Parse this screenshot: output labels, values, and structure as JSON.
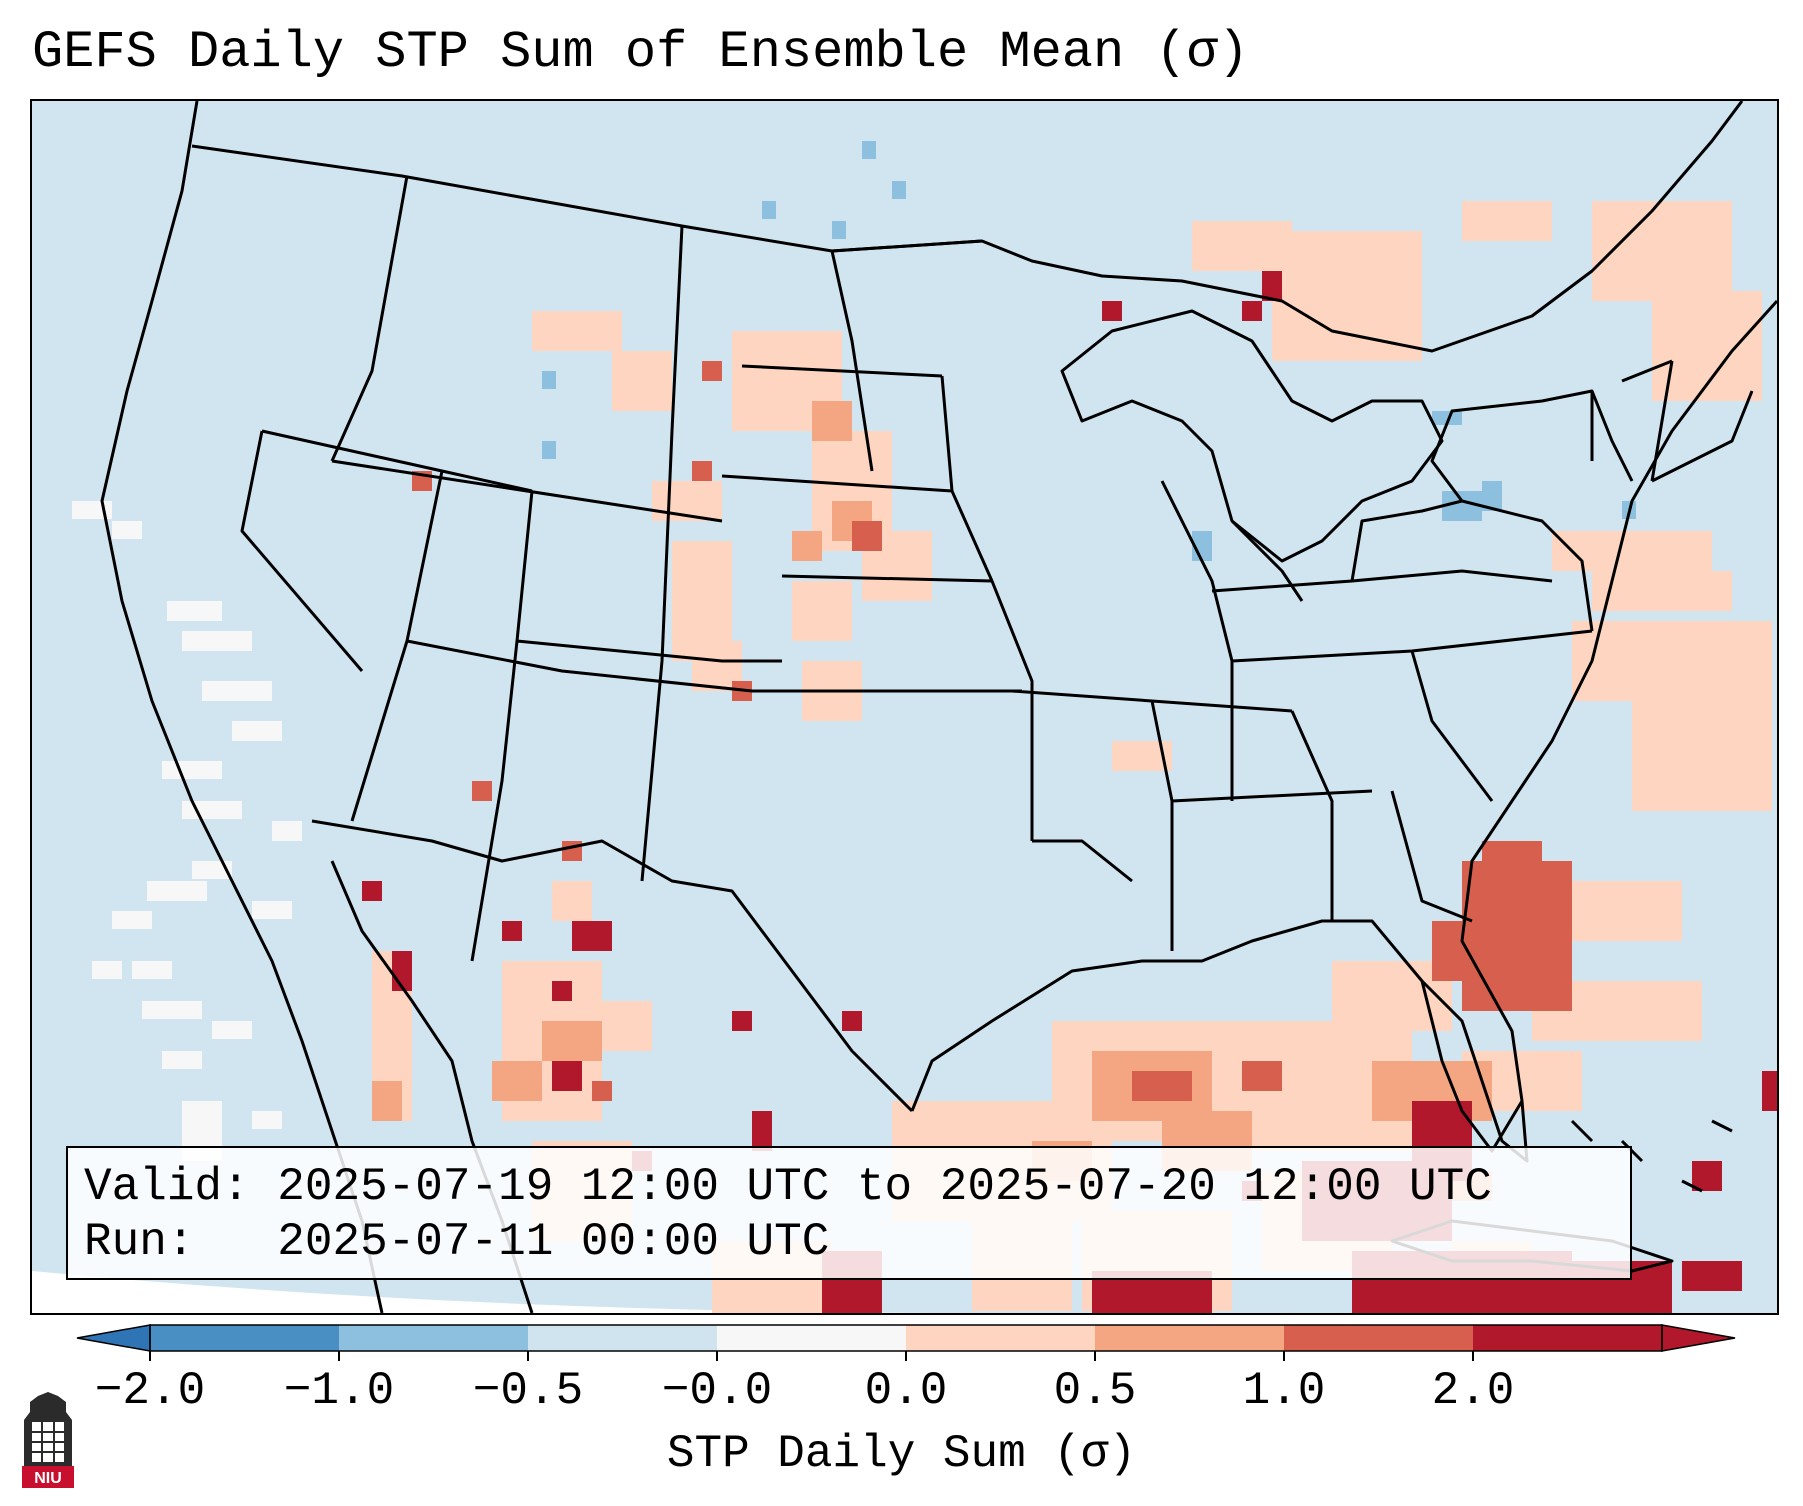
{
  "title": "GEFS Daily STP Sum of Ensemble Mean (σ)",
  "info": {
    "valid_label": "Valid:",
    "valid_value": "2025-07-19 12:00 UTC to 2025-07-20 12:00 UTC",
    "run_label": "Run:",
    "run_value": "2025-07-11 00:00 UTC"
  },
  "colorbar": {
    "title": "STP Daily Sum (σ)",
    "ticks": [
      "−2.0",
      "−1.0",
      "−0.5",
      "−0.0",
      "0.0",
      "0.5",
      "1.0",
      "2.0"
    ],
    "segment_colors": [
      "#4a8fc4",
      "#8cc0de",
      "#cfe4ef",
      "#f7f7f7",
      "#fdd5c0",
      "#f4a582",
      "#d6604d",
      "#b2182b"
    ],
    "extend_low_color": "#2f75b5",
    "extend_high_color": "#b2182b"
  },
  "colors": {
    "ocean_outside": "#ffffff",
    "background_field": "#d1e5f0",
    "boundary": "#000000"
  },
  "logo": {
    "text": "NIU",
    "icon": "university-tower-icon"
  }
}
